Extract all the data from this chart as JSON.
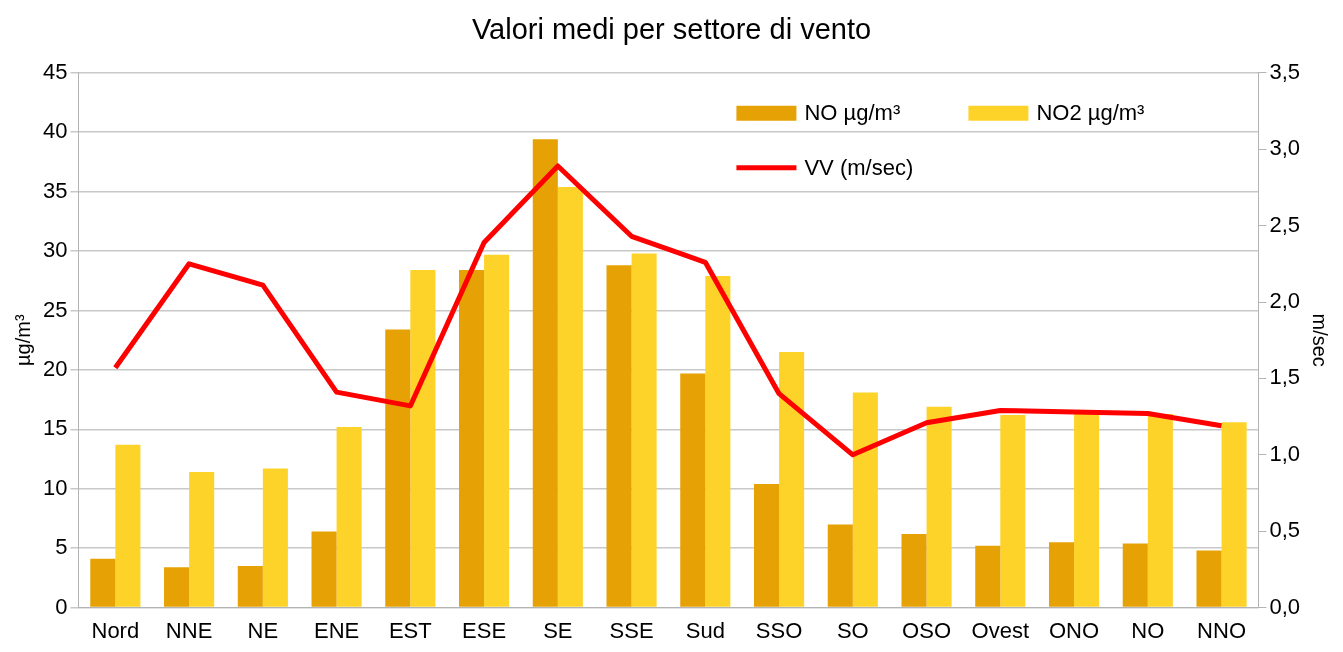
{
  "chart_data": {
    "type": "bar",
    "title": "Valori medi per settore di vento",
    "ylabel": "µg/m³",
    "y2label": "m/sec",
    "categories": [
      "Nord",
      "NNE",
      "NE",
      "ENE",
      "EST",
      "ESE",
      "SE",
      "SSE",
      "Sud",
      "SSO",
      "SO",
      "OSO",
      "Ovest",
      "ONO",
      "NO",
      "NNO"
    ],
    "series": [
      {
        "name": "NO µg/m³",
        "color": "#e6a205",
        "values": [
          4.1,
          3.4,
          3.5,
          6.4,
          23.4,
          28.4,
          39.4,
          28.8,
          19.7,
          10.4,
          7.0,
          6.2,
          5.2,
          5.5,
          5.4,
          4.8
        ]
      },
      {
        "name": "NO2 µg/m³",
        "color": "#fdd32a",
        "values": [
          13.7,
          11.4,
          11.7,
          15.2,
          28.4,
          29.7,
          35.4,
          29.8,
          27.9,
          21.5,
          18.1,
          16.9,
          16.2,
          16.4,
          16.3,
          15.6
        ]
      },
      {
        "name": "VV (m/sec)",
        "type": "line",
        "axis": "y2",
        "color": "#ff0000",
        "values": [
          1.57,
          2.25,
          2.11,
          1.41,
          1.32,
          2.39,
          2.89,
          2.43,
          2.26,
          1.4,
          1.0,
          1.21,
          1.29,
          1.28,
          1.27,
          1.19
        ]
      }
    ],
    "ylim": [
      0,
      45
    ],
    "yticks": [
      0,
      5,
      10,
      15,
      20,
      25,
      30,
      35,
      40,
      45
    ],
    "y2lim": [
      0,
      3.5
    ],
    "y2ticks": [
      {
        "value": 0,
        "label": "0,0"
      },
      {
        "value": 0.5,
        "label": "0,5"
      },
      {
        "value": 1,
        "label": "1,0"
      },
      {
        "value": 1.5,
        "label": "1,5"
      },
      {
        "value": 2,
        "label": "2,0"
      },
      {
        "value": 2.5,
        "label": "2,5"
      },
      {
        "value": 3,
        "label": "3,0"
      },
      {
        "value": 3.5,
        "label": "3,5"
      }
    ],
    "grid": "y",
    "legend": "top right",
    "marker": "none"
  }
}
